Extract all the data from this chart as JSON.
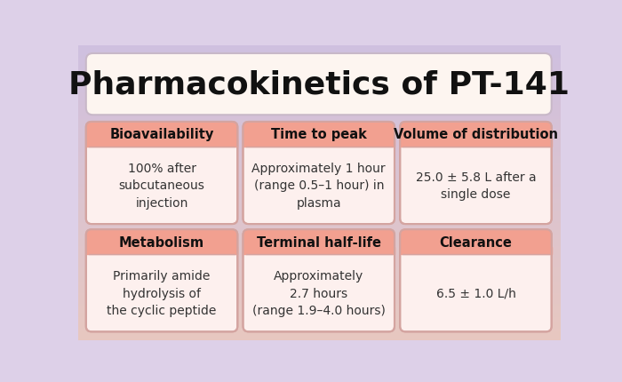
{
  "title": "Pharmacokinetics of PT-141",
  "background_color": "#ddd0e8",
  "title_box_color": "#fdf5f0",
  "title_text_color": "#111111",
  "header_bg_color": "#f2a090",
  "cell_bg_color": "#fdf0ee",
  "border_color": "#d4a4a0",
  "cells": [
    {
      "header": "Bioavailability",
      "body": "100% after\nsubcutaneous\ninjection",
      "row": 0,
      "col": 0
    },
    {
      "header": "Time to peak",
      "body": "Approximately 1 hour\n(range 0.5–1 hour) in\nplasma",
      "row": 0,
      "col": 1
    },
    {
      "header": "Volume of distribution",
      "body": "25.0 ± 5.8 L after a\nsingle dose",
      "row": 0,
      "col": 2
    },
    {
      "header": "Metabolism",
      "body": "Primarily amide\nhydrolysis of\nthe cyclic peptide",
      "row": 1,
      "col": 0
    },
    {
      "header": "Terminal half-life",
      "body": "Approximately\n2.7 hours\n(range 1.9–4.0 hours)",
      "row": 1,
      "col": 1
    },
    {
      "header": "Clearance",
      "body": "6.5 ± 1.0 L/h",
      "row": 1,
      "col": 2
    }
  ]
}
